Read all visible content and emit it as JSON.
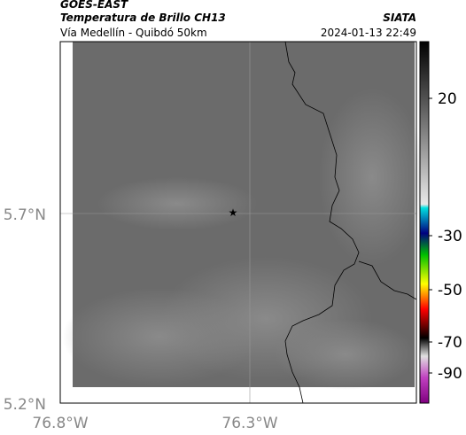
{
  "header": {
    "title": "GOES-EAST",
    "subtitle": "Temperatura de Brillo CH13",
    "route": "Vía Medellín - Quibdó 50km",
    "source": "SIATA",
    "datetime": "2024-01-13 22:49"
  },
  "map": {
    "lat_labels": [
      "5.7°N",
      "5.2°N"
    ],
    "lon_labels": [
      "76.8°W",
      "76.3°W"
    ]
  },
  "colorbar": {
    "ticks": [
      20,
      -30,
      -50,
      -70,
      -90
    ]
  }
}
